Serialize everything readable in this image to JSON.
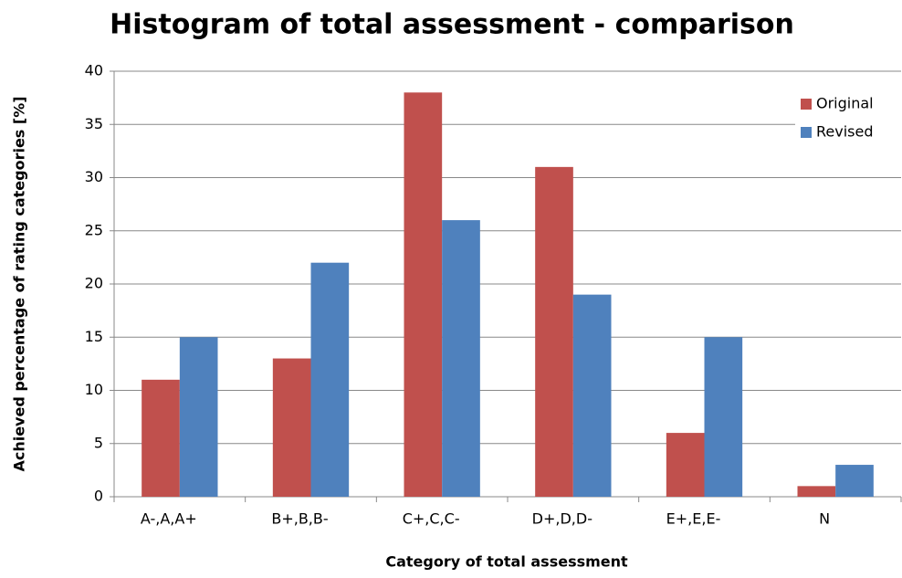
{
  "chart_data": {
    "type": "bar",
    "title": "Histogram of total assessment - comparison",
    "xlabel": "Category of total assessment",
    "ylabel": "Achieved percentage of rating categories [%]",
    "categories": [
      "A-,A,A+",
      "B+,B,B-",
      "C+,C,C-",
      "D+,D,D-",
      "E+,E,E-",
      "N"
    ],
    "series": [
      {
        "name": "Original",
        "color": "#c0504d",
        "values": [
          11,
          13,
          38,
          31,
          6,
          1
        ]
      },
      {
        "name": "Revised",
        "color": "#4f81bd",
        "values": [
          15,
          22,
          26,
          19,
          15,
          3
        ]
      }
    ],
    "ylim": [
      0,
      40
    ],
    "yticks": [
      0,
      5,
      10,
      15,
      20,
      25,
      30,
      35,
      40
    ],
    "grid": true,
    "legend": "top-right"
  }
}
